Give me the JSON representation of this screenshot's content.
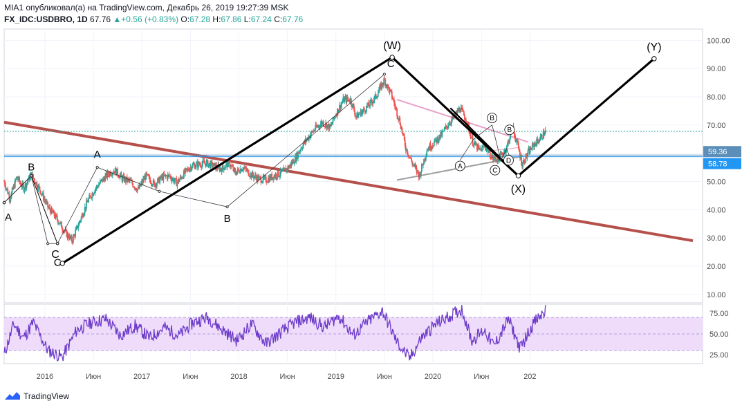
{
  "header": {
    "line1": "MIA1 опубликовал(а) на TradingView.com, Декабрь 26, 2019 19:27:39 MSK",
    "symbol": "FX_IDC:USDBRO, 1D",
    "last": "67.76",
    "change": "+0.56 (+0.83%)",
    "o_label": "O:",
    "o": "67.28",
    "h_label": "H:",
    "h": "67.86",
    "l_label": "L:",
    "l": "67.24",
    "c_label": "C:",
    "c": "67.76"
  },
  "footer": {
    "brand": "TradingView"
  },
  "colors": {
    "up": "#26a69a",
    "down": "#ef5350",
    "wave": "#000000",
    "trend": "#b5504b",
    "rsi": "#6c3bc9",
    "rsi_band": "#efdcfb",
    "hline": "#26a69a",
    "hline_blue": "#2196f3"
  },
  "chart_data": {
    "type": "candlestick",
    "price_axis": {
      "ticks": [
        "100.00",
        "90.00",
        "80.00",
        "70.00",
        "60.00",
        "50.00",
        "40.00",
        "30.00",
        "20.00",
        "10.00"
      ],
      "ylim": [
        7,
        104
      ]
    },
    "rsi_axis": {
      "ticks": [
        "75.00",
        "50.00",
        "25.00"
      ],
      "ylim": [
        14,
        86
      ],
      "band": [
        30,
        70
      ]
    },
    "time_axis": [
      "2016",
      "Июн",
      "2017",
      "Июн",
      "2018",
      "Июн",
      "2019",
      "Июн",
      "2020",
      "Июн",
      "202"
    ],
    "price_labels": [
      {
        "value": "59.36",
        "color": "#5b8fb9"
      },
      {
        "value": "58.78",
        "color": "#2196f3"
      }
    ],
    "horizontal_levels": [
      67.76,
      59.36,
      58.78
    ],
    "price_path": [
      [
        2015.0,
        50.0
      ],
      [
        2015.06,
        44.0
      ],
      [
        2015.13,
        51.5
      ],
      [
        2015.2,
        47.5
      ],
      [
        2015.28,
        52.5
      ],
      [
        2015.37,
        47.0
      ],
      [
        2015.45,
        41.0
      ],
      [
        2015.55,
        36.5
      ],
      [
        2015.63,
        32.0
      ],
      [
        2015.7,
        29.0
      ],
      [
        2015.78,
        36.0
      ],
      [
        2015.86,
        43.0
      ],
      [
        2015.93,
        47.0
      ],
      [
        2016.0,
        50.0
      ],
      [
        2016.08,
        53.0
      ],
      [
        2016.14,
        54.0
      ],
      [
        2016.22,
        51.0
      ],
      [
        2016.3,
        50.0
      ],
      [
        2016.38,
        47.0
      ],
      [
        2016.46,
        52.0
      ],
      [
        2016.55,
        49.0
      ],
      [
        2016.63,
        51.5
      ],
      [
        2016.7,
        52.0
      ],
      [
        2016.78,
        49.5
      ],
      [
        2016.86,
        53.0
      ],
      [
        2016.93,
        55.5
      ],
      [
        2017.0,
        56.0
      ],
      [
        2017.08,
        56.5
      ],
      [
        2017.16,
        55.5
      ],
      [
        2017.24,
        54.5
      ],
      [
        2017.32,
        56.5
      ],
      [
        2017.38,
        53.0
      ],
      [
        2017.46,
        55.0
      ],
      [
        2017.54,
        52.5
      ],
      [
        2017.62,
        51.0
      ],
      [
        2017.7,
        50.5
      ],
      [
        2017.78,
        52.0
      ],
      [
        2017.86,
        53.0
      ],
      [
        2017.93,
        55.0
      ],
      [
        2018.0,
        58.0
      ],
      [
        2018.06,
        62.0
      ],
      [
        2018.12,
        65.0
      ],
      [
        2018.2,
        68.5
      ],
      [
        2018.28,
        71.0
      ],
      [
        2018.36,
        69.0
      ],
      [
        2018.42,
        74.0
      ],
      [
        2018.5,
        79.0
      ],
      [
        2018.57,
        79.0
      ],
      [
        2018.63,
        73.0
      ],
      [
        2018.7,
        75.0
      ],
      [
        2018.76,
        77.0
      ],
      [
        2018.83,
        80.0
      ],
      [
        2018.92,
        86.0
      ],
      [
        2019.0,
        80.0
      ],
      [
        2019.08,
        71.0
      ],
      [
        2019.14,
        62.0
      ],
      [
        2019.2,
        57.0
      ],
      [
        2019.28,
        52.0
      ],
      [
        2019.36,
        61.5
      ],
      [
        2019.44,
        64.0
      ],
      [
        2019.52,
        67.0
      ],
      [
        2019.58,
        70.5
      ],
      [
        2019.64,
        73.0
      ],
      [
        2019.7,
        76.0
      ],
      [
        2019.76,
        72.0
      ],
      [
        2019.83,
        64.0
      ],
      [
        2019.9,
        61.0
      ],
      [
        2019.96,
        62.5
      ],
      [
        2020.04,
        58.0
      ],
      [
        2020.1,
        58.0
      ],
      [
        2020.18,
        62.0
      ],
      [
        2020.24,
        69.0
      ],
      [
        2020.3,
        62.0
      ],
      [
        2020.34,
        56.0
      ],
      [
        2020.4,
        60.0
      ],
      [
        2020.46,
        63.0
      ],
      [
        2020.52,
        65.0
      ],
      [
        2020.58,
        67.76
      ]
    ],
    "rsi_path": [
      [
        2015.0,
        25
      ],
      [
        2015.1,
        62
      ],
      [
        2015.2,
        45
      ],
      [
        2015.3,
        64
      ],
      [
        2015.45,
        30
      ],
      [
        2015.6,
        22
      ],
      [
        2015.75,
        55
      ],
      [
        2015.9,
        64
      ],
      [
        2016.05,
        68
      ],
      [
        2016.2,
        48
      ],
      [
        2016.35,
        60
      ],
      [
        2016.5,
        45
      ],
      [
        2016.65,
        58
      ],
      [
        2016.8,
        48
      ],
      [
        2016.95,
        64
      ],
      [
        2017.1,
        70
      ],
      [
        2017.25,
        55
      ],
      [
        2017.4,
        42
      ],
      [
        2017.55,
        62
      ],
      [
        2017.7,
        38
      ],
      [
        2017.85,
        52
      ],
      [
        2018.0,
        64
      ],
      [
        2018.15,
        70
      ],
      [
        2018.3,
        58
      ],
      [
        2018.45,
        72
      ],
      [
        2018.6,
        48
      ],
      [
        2018.75,
        65
      ],
      [
        2018.9,
        78
      ],
      [
        2019.05,
        40
      ],
      [
        2019.18,
        20
      ],
      [
        2019.3,
        45
      ],
      [
        2019.45,
        62
      ],
      [
        2019.6,
        72
      ],
      [
        2019.72,
        80
      ],
      [
        2019.82,
        42
      ],
      [
        2019.95,
        55
      ],
      [
        2020.05,
        35
      ],
      [
        2020.2,
        68
      ],
      [
        2020.32,
        32
      ],
      [
        2020.45,
        62
      ],
      [
        2020.58,
        78
      ]
    ],
    "waves": {
      "primary": [
        {
          "t": 2015.6,
          "p": 21.0,
          "label": "C"
        },
        {
          "t": 2019.0,
          "p": 94.0,
          "label": "(W)"
        },
        {
          "t": 2020.3,
          "p": 52.0,
          "label": "(X)"
        },
        {
          "t": 2021.7,
          "p": 93.5,
          "label": "(Y)"
        }
      ],
      "abc_left": [
        {
          "t": 2015.0,
          "p": 42.5,
          "label": "A"
        },
        {
          "t": 2015.28,
          "p": 52.0,
          "label": "B"
        },
        {
          "t": 2015.55,
          "p": 28.0,
          "label": "C"
        }
      ],
      "thin_path": [
        [
          2015.0,
          42.5
        ],
        [
          2015.28,
          52.0
        ],
        [
          2015.45,
          28.0
        ],
        [
          2015.55,
          28.0
        ],
        [
          2015.96,
          55.0
        ],
        [
          2016.6,
          46.5
        ],
        [
          2017.3,
          41.0
        ],
        [
          2018.92,
          88.0
        ]
      ],
      "thin_labels": [
        {
          "t": 2015.96,
          "p": 55.0,
          "label": "A",
          "dy": -14
        },
        {
          "t": 2017.3,
          "p": 41.0,
          "label": "B",
          "dy": 22
        },
        {
          "t": 2019.0,
          "p": 94.0,
          "label": "C",
          "dy": 14,
          "dx": -2
        }
      ],
      "circled": [
        {
          "t": 2019.7,
          "p": 55.5,
          "label": "A"
        },
        {
          "t": 2020.03,
          "p": 72.5,
          "label": "B"
        },
        {
          "t": 2020.06,
          "p": 54.0,
          "label": "C"
        },
        {
          "t": 2020.21,
          "p": 68.3,
          "label": "B"
        },
        {
          "t": 2020.2,
          "p": 57.5,
          "label": "D"
        }
      ],
      "thin_inner": [
        [
          2019.7,
          57.5
        ],
        [
          2019.84,
          65.0
        ],
        [
          2020.03,
          70.0
        ],
        [
          2020.12,
          57.5
        ],
        [
          2020.18,
          61.5
        ],
        [
          2020.22,
          58.0
        ]
      ]
    },
    "trendlines": [
      {
        "from": [
          2015.0,
          71.0
        ],
        "to": [
          2022.1,
          29.0
        ],
        "color": "#b5504b",
        "width": 4
      },
      {
        "from": [
          2019.05,
          50.5
        ],
        "to": [
          2020.35,
          59.0
        ],
        "color": "#9e9e9e",
        "width": 2
      },
      {
        "from": [
          2019.05,
          79.0
        ],
        "to": [
          2020.4,
          64.0
        ],
        "color": "#e8a0c8",
        "width": 2
      },
      {
        "from": [
          2020.05,
          61.0
        ],
        "to": [
          2020.3,
          62.0
        ],
        "color": "#e8a0c8",
        "width": 1
      }
    ],
    "black_wave_segment": {
      "from": [
        2019.6,
        76.0
      ],
      "to": [
        2020.3,
        52.0
      ]
    }
  }
}
